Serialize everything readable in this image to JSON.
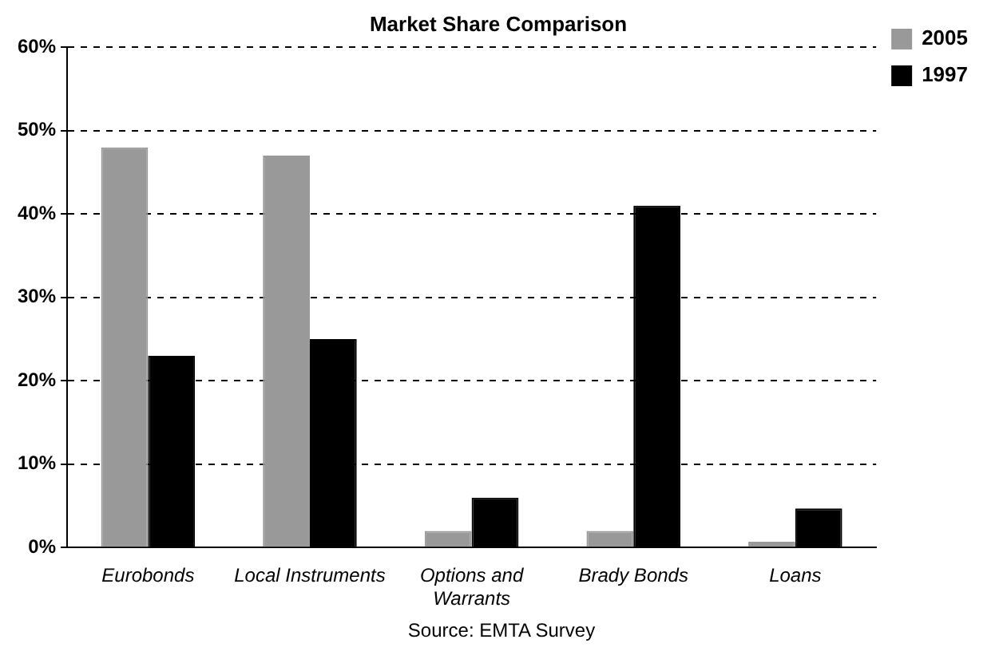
{
  "chart_data": {
    "type": "bar",
    "title": "Market Share Comparison",
    "categories": [
      "Eurobonds",
      "Local Instruments",
      "Options and Warrants",
      "Brady Bonds",
      "Loans"
    ],
    "series": [
      {
        "name": "2005",
        "color": "#999999",
        "values": [
          48,
          47,
          2,
          2,
          0.7
        ]
      },
      {
        "name": "1997",
        "color": "#000000",
        "values": [
          23,
          25,
          6,
          41,
          4.7
        ]
      }
    ],
    "ylim": [
      0,
      60
    ],
    "yticks": [
      {
        "value": 0,
        "label": "0%"
      },
      {
        "value": 10,
        "label": "10%"
      },
      {
        "value": 20,
        "label": "20%"
      },
      {
        "value": 30,
        "label": "30%"
      },
      {
        "value": 40,
        "label": "40%"
      },
      {
        "value": 50,
        "label": "50%"
      },
      {
        "value": 60,
        "label": "60%"
      }
    ],
    "grid": "y",
    "legend": "top right",
    "annotations": [
      "Source: EMTA Survey"
    ]
  }
}
